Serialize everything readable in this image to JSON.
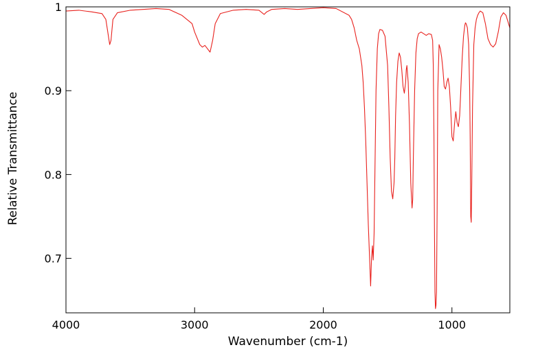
{
  "chart_data": {
    "type": "line",
    "xlabel": "Wavenumber (cm-1)",
    "ylabel": "Relative Transmittance",
    "xlim": [
      4000,
      550
    ],
    "ylim": [
      0.635,
      1.0
    ],
    "x_reversed": true,
    "grid": false,
    "xticks": [
      {
        "value": 4000,
        "label": "4000"
      },
      {
        "value": 3000,
        "label": "3000"
      },
      {
        "value": 2000,
        "label": "2000"
      },
      {
        "value": 1000,
        "label": "1000"
      }
    ],
    "yticks": [
      {
        "value": 1.0,
        "label": "1"
      },
      {
        "value": 0.9,
        "label": "0.9"
      },
      {
        "value": 0.8,
        "label": "0.8"
      },
      {
        "value": 0.7,
        "label": "0.7"
      }
    ],
    "series": [
      {
        "color": "#e8201c",
        "x": [
          4000,
          3900,
          3800,
          3720,
          3690,
          3670,
          3660,
          3650,
          3635,
          3600,
          3500,
          3400,
          3300,
          3200,
          3100,
          3060,
          3020,
          3000,
          2960,
          2940,
          2920,
          2900,
          2880,
          2860,
          2840,
          2800,
          2700,
          2600,
          2500,
          2460,
          2440,
          2400,
          2300,
          2200,
          2100,
          2000,
          1900,
          1800,
          1780,
          1760,
          1740,
          1720,
          1700,
          1690,
          1680,
          1670,
          1660,
          1650,
          1640,
          1632,
          1625,
          1618,
          1612,
          1605,
          1598,
          1590,
          1580,
          1570,
          1560,
          1540,
          1520,
          1500,
          1490,
          1480,
          1470,
          1460,
          1450,
          1444,
          1438,
          1430,
          1420,
          1410,
          1400,
          1390,
          1380,
          1370,
          1360,
          1355,
          1350,
          1340,
          1330,
          1320,
          1310,
          1305,
          1300,
          1290,
          1280,
          1270,
          1260,
          1240,
          1220,
          1200,
          1180,
          1160,
          1150,
          1145,
          1140,
          1136,
          1132,
          1128,
          1124,
          1120,
          1115,
          1110,
          1100,
          1090,
          1080,
          1070,
          1060,
          1050,
          1040,
          1030,
          1020,
          1010,
          1000,
          990,
          980,
          970,
          960,
          950,
          940,
          930,
          920,
          910,
          900,
          895,
          890,
          880,
          870,
          862,
          858,
          854,
          850,
          846,
          840,
          830,
          820,
          810,
          800,
          790,
          780,
          760,
          740,
          720,
          700,
          680,
          660,
          640,
          620,
          600,
          580,
          560,
          550
        ],
        "y": [
          0.995,
          0.996,
          0.994,
          0.992,
          0.985,
          0.965,
          0.955,
          0.96,
          0.985,
          0.993,
          0.996,
          0.997,
          0.998,
          0.997,
          0.99,
          0.985,
          0.98,
          0.97,
          0.955,
          0.952,
          0.954,
          0.95,
          0.946,
          0.96,
          0.98,
          0.992,
          0.996,
          0.997,
          0.996,
          0.991,
          0.994,
          0.997,
          0.998,
          0.997,
          0.998,
          0.999,
          0.998,
          0.99,
          0.985,
          0.975,
          0.96,
          0.95,
          0.93,
          0.91,
          0.88,
          0.84,
          0.79,
          0.74,
          0.7,
          0.667,
          0.7,
          0.715,
          0.698,
          0.73,
          0.81,
          0.9,
          0.95,
          0.968,
          0.973,
          0.972,
          0.965,
          0.93,
          0.88,
          0.82,
          0.78,
          0.771,
          0.79,
          0.82,
          0.87,
          0.91,
          0.935,
          0.945,
          0.94,
          0.925,
          0.905,
          0.897,
          0.91,
          0.925,
          0.93,
          0.91,
          0.86,
          0.79,
          0.76,
          0.77,
          0.82,
          0.9,
          0.945,
          0.962,
          0.968,
          0.97,
          0.968,
          0.966,
          0.968,
          0.967,
          0.96,
          0.93,
          0.85,
          0.74,
          0.66,
          0.64,
          0.644,
          0.66,
          0.76,
          0.9,
          0.955,
          0.95,
          0.94,
          0.925,
          0.905,
          0.902,
          0.91,
          0.915,
          0.905,
          0.88,
          0.845,
          0.84,
          0.86,
          0.875,
          0.862,
          0.857,
          0.87,
          0.905,
          0.94,
          0.965,
          0.978,
          0.981,
          0.98,
          0.975,
          0.955,
          0.9,
          0.84,
          0.75,
          0.743,
          0.79,
          0.88,
          0.955,
          0.975,
          0.985,
          0.99,
          0.993,
          0.995,
          0.993,
          0.98,
          0.962,
          0.955,
          0.952,
          0.956,
          0.97,
          0.988,
          0.993,
          0.99,
          0.98,
          0.975
        ]
      }
    ]
  }
}
